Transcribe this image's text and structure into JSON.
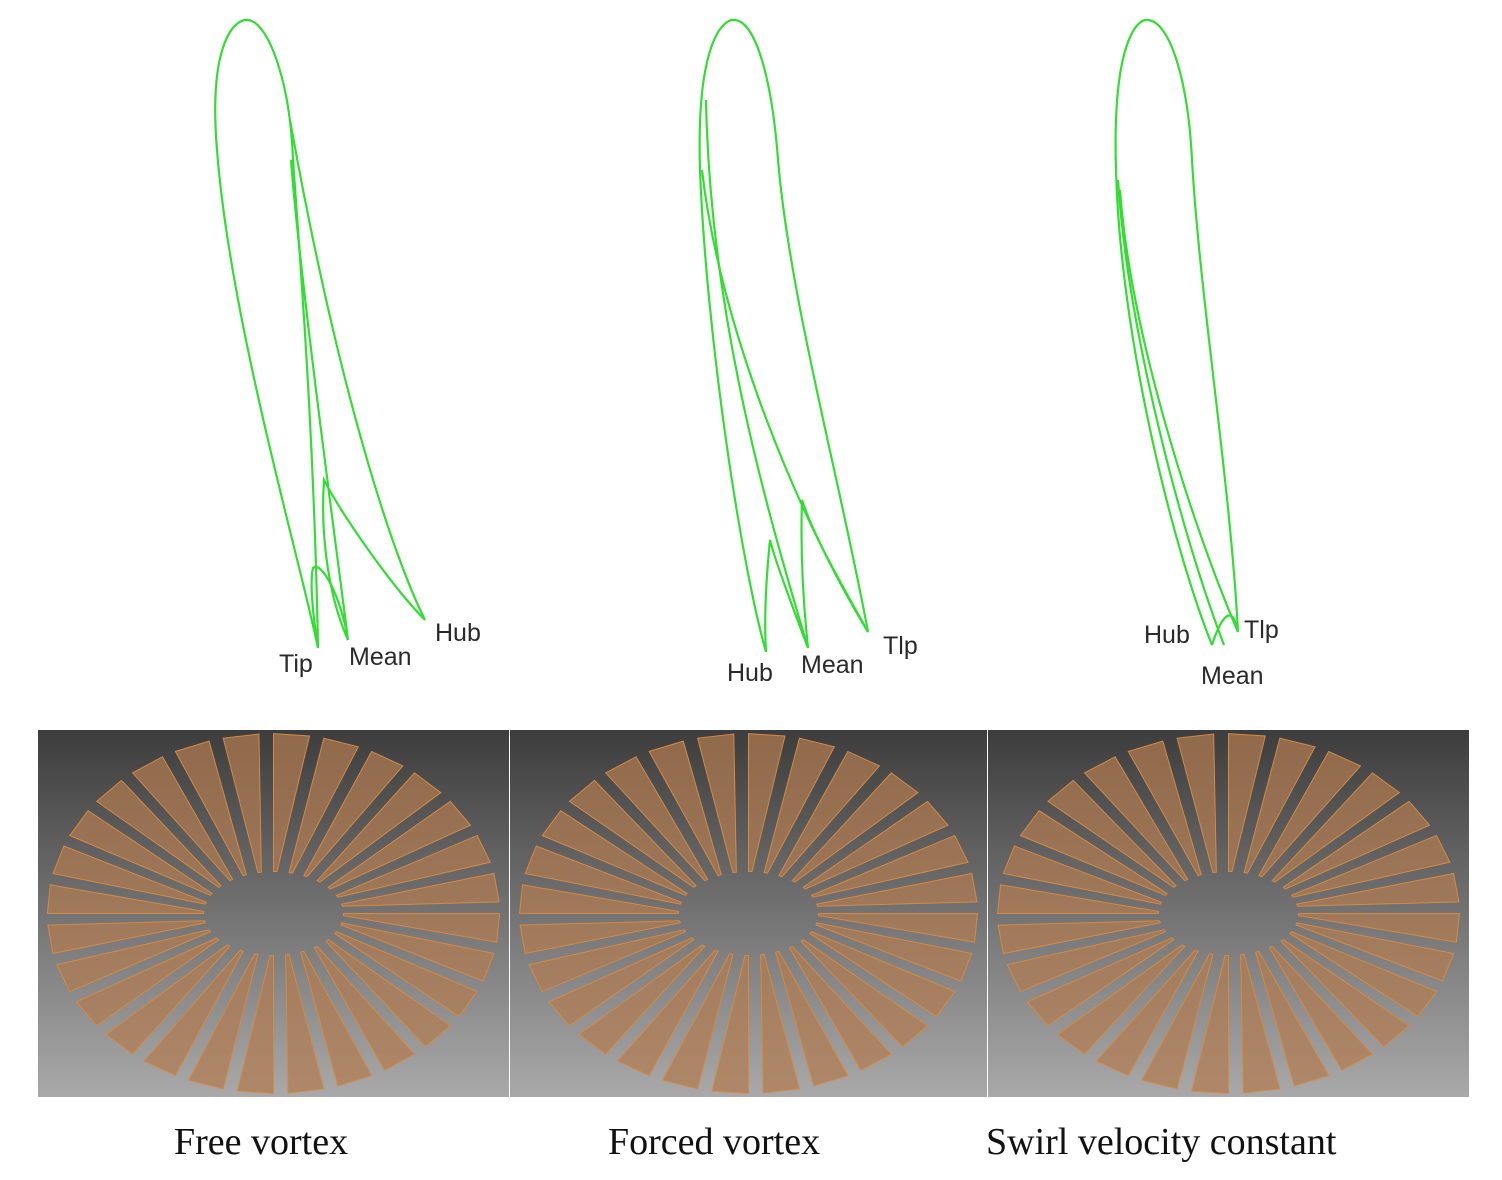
{
  "colors": {
    "profile_line": "#33dd33",
    "blade_fill": "#b07b4f",
    "blade_edge": "#d48a44",
    "background_top": "#3d3d3d",
    "background_bottom": "#a9a9a9"
  },
  "cases": [
    {
      "caption": "Free vortex",
      "labels": {
        "left": "Tip",
        "middle": "Mean",
        "right": "Hub"
      }
    },
    {
      "caption": "Forced vortex",
      "labels": {
        "left": "Hub",
        "middle": "Mean",
        "right": "Tlp"
      }
    },
    {
      "caption": "Swirl velocity constant",
      "labels": {
        "left": "Hub",
        "middle": "Mean",
        "right": "Tlp"
      }
    }
  ]
}
